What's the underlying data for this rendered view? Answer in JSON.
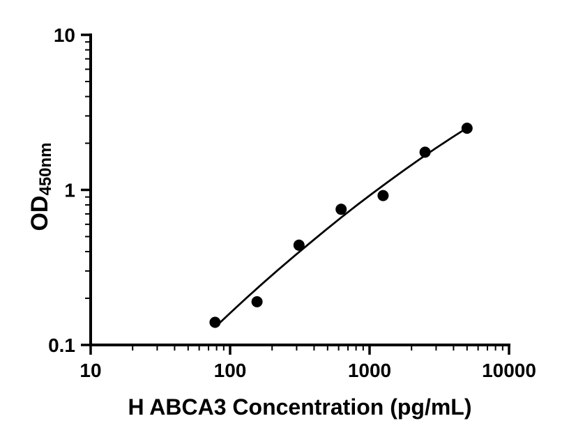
{
  "chart_data": {
    "type": "scatter",
    "title": "",
    "xlabel": "H ABCA3 Concentration (pg/mL)",
    "ylabel": {
      "base": "OD",
      "subscript": "450nm"
    },
    "x_scale": "log",
    "y_scale": "log",
    "xlim": [
      10,
      10000
    ],
    "ylim": [
      0.1,
      10
    ],
    "x_tick_values": [
      10,
      100,
      1000,
      10000
    ],
    "x_tick_labels": [
      "10",
      "100",
      "1000",
      "10000"
    ],
    "y_tick_values": [
      0.1,
      1,
      10
    ],
    "y_tick_labels": [
      "0.1",
      "1",
      "10"
    ],
    "grid": false,
    "legend": "none",
    "colors": {
      "marker": "#000000",
      "line": "#000000",
      "axis": "#000000",
      "background": "#ffffff"
    },
    "series": [
      {
        "name": "standards",
        "type": "scatter",
        "points": [
          [
            78,
            0.14
          ],
          [
            156,
            0.19
          ],
          [
            312,
            0.44
          ],
          [
            625,
            0.75
          ],
          [
            1250,
            0.92
          ],
          [
            2500,
            1.75
          ],
          [
            5000,
            2.5
          ]
        ]
      },
      {
        "name": "fit-curve",
        "type": "line",
        "points": [
          [
            78,
            0.13
          ],
          [
            101,
            0.162
          ],
          [
            131,
            0.201
          ],
          [
            170,
            0.248
          ],
          [
            221,
            0.305
          ],
          [
            287,
            0.373
          ],
          [
            372,
            0.453
          ],
          [
            482,
            0.549
          ],
          [
            625,
            0.663
          ],
          [
            810,
            0.796
          ],
          [
            1051,
            0.951
          ],
          [
            1363,
            1.131
          ],
          [
            1768,
            1.339
          ],
          [
            2292,
            1.579
          ],
          [
            2973,
            1.852
          ],
          [
            3855,
            2.162
          ],
          [
            5000,
            2.513
          ]
        ]
      }
    ]
  }
}
